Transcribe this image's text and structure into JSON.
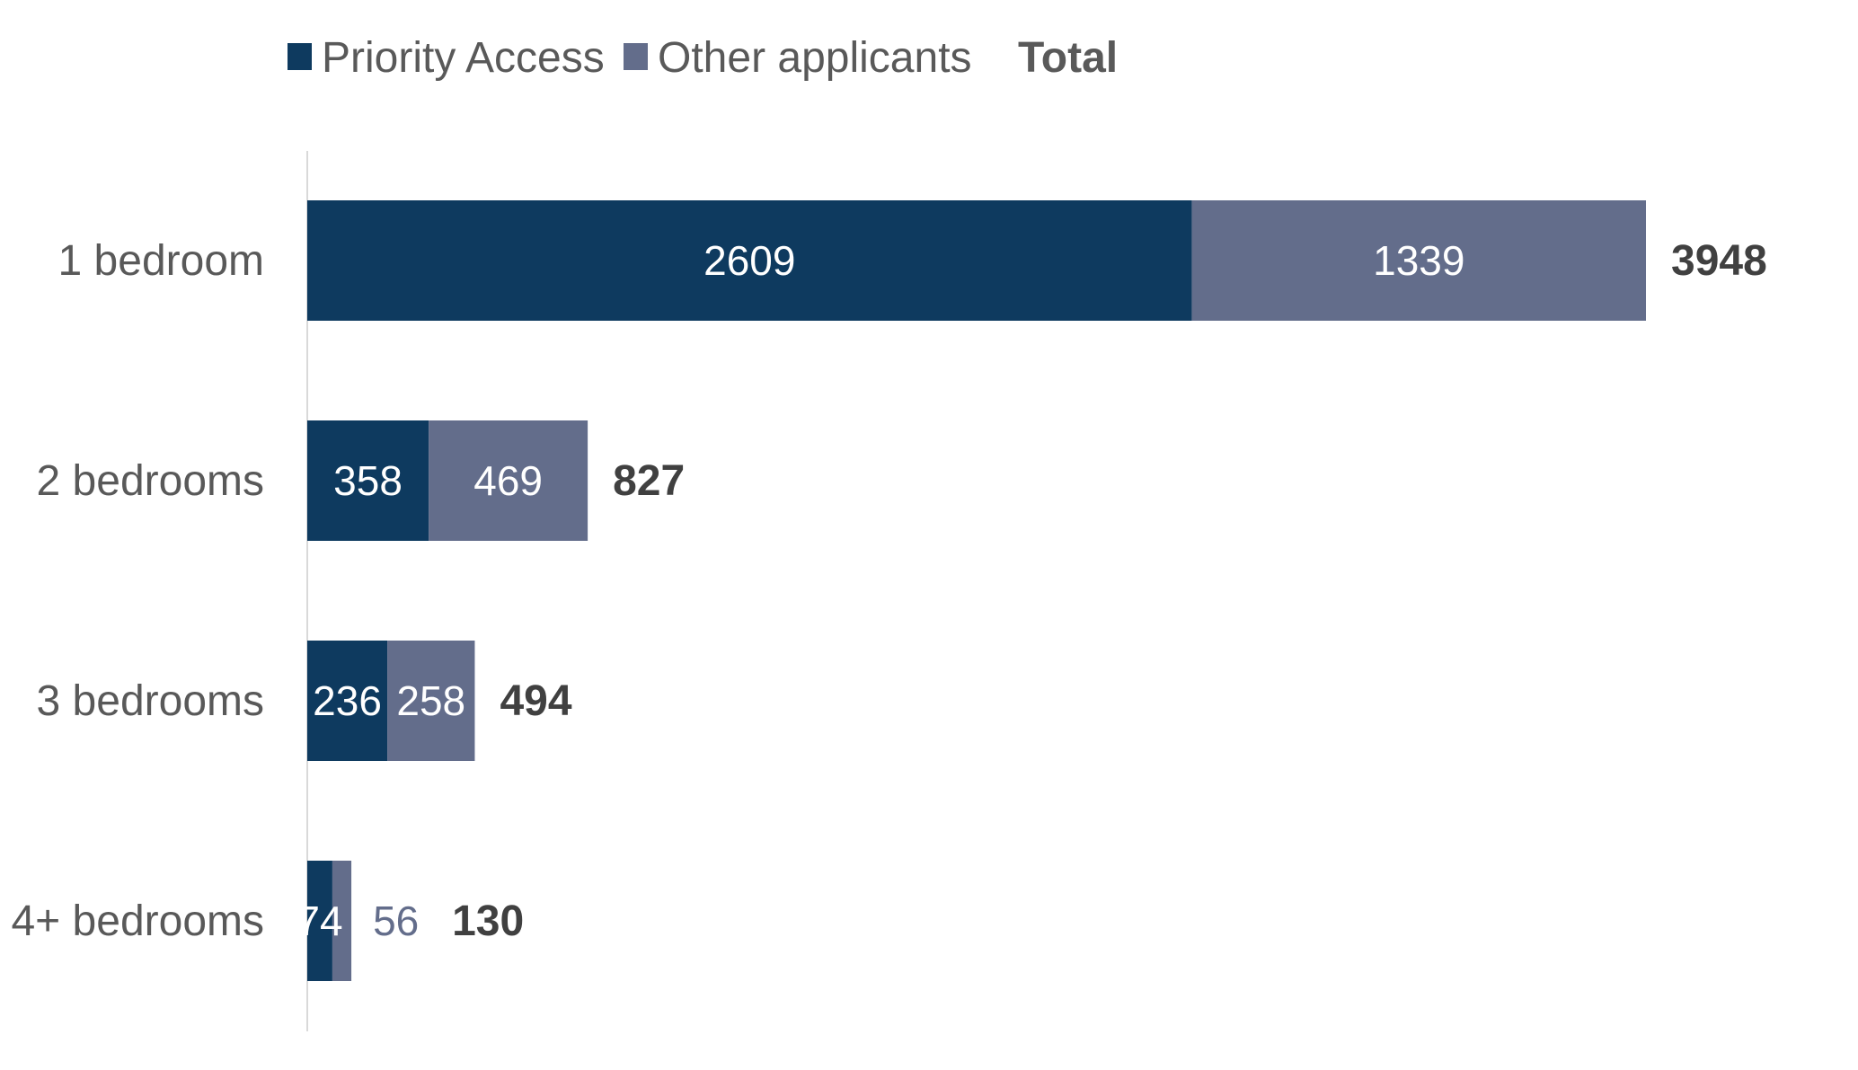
{
  "chart_data": {
    "type": "bar",
    "orientation": "horizontal",
    "stacked": true,
    "title": "",
    "xlabel": "",
    "ylabel": "",
    "categories": [
      "1 bedroom",
      "2 bedrooms",
      "3 bedrooms",
      "4+ bedrooms"
    ],
    "series": [
      {
        "name": "Priority Access",
        "values": [
          2609,
          358,
          236,
          74
        ],
        "color": "#0e3a5f",
        "label_color": "#ffffff"
      },
      {
        "name": "Other applicants",
        "values": [
          1339,
          469,
          258,
          56
        ],
        "color": "#636d8b",
        "label_color": "#ffffff"
      }
    ],
    "totals": {
      "name": "Total",
      "values": [
        3948,
        827,
        494,
        130
      ]
    },
    "xlim": [
      0,
      3948
    ],
    "grid": false,
    "legend": "top"
  },
  "colors": {
    "axis_line": "#d9d9d9",
    "small_segment_label": "#636d8b"
  }
}
